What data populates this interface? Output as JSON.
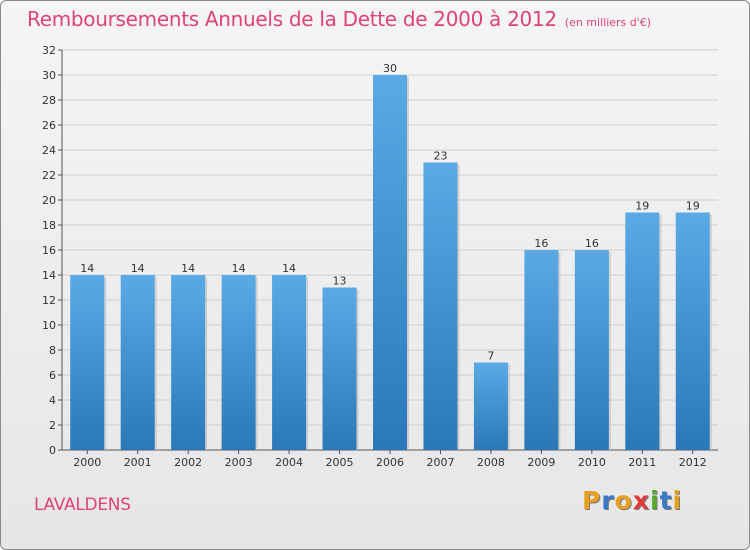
{
  "header": {
    "title": "Remboursements Annuels de la Dette de 2000 à 2012",
    "unit": "(en milliers d'€)"
  },
  "footer": {
    "commune": "LAVALDENS",
    "logo": "Proxiti"
  },
  "colors": {
    "title": "#e0417a",
    "bar_top": "#5aaae6",
    "bar_bottom": "#2a78b8",
    "logo_letters": [
      "#e8a020",
      "#3a78c8",
      "#e8a020",
      "#e03a3a",
      "#58a830",
      "#3a78c8",
      "#e8a020"
    ]
  },
  "chart_data": {
    "type": "bar",
    "title": "Remboursements Annuels de la Dette de 2000 à 2012",
    "subtitle": "(en milliers d'€)",
    "categories": [
      "2000",
      "2001",
      "2002",
      "2003",
      "2004",
      "2005",
      "2006",
      "2007",
      "2008",
      "2009",
      "2010",
      "2011",
      "2012"
    ],
    "values": [
      14,
      14,
      14,
      14,
      14,
      13,
      30,
      23,
      7,
      16,
      16,
      19,
      19
    ],
    "data_labels": [
      "14",
      "14",
      "14",
      "14",
      "14",
      "13",
      "30",
      "23",
      "7",
      "16",
      "16",
      "19",
      "19"
    ],
    "ylim": [
      0,
      32
    ],
    "yticks": [
      0,
      2,
      4,
      6,
      8,
      10,
      12,
      14,
      16,
      18,
      20,
      22,
      24,
      26,
      28,
      30,
      32
    ],
    "grid": true
  }
}
